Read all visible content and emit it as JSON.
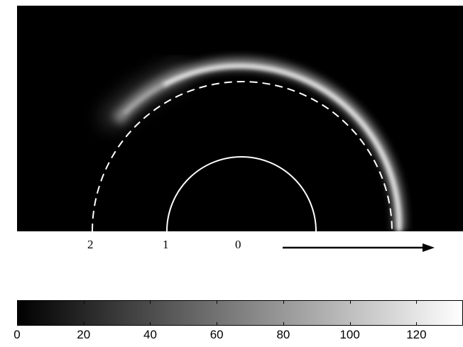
{
  "main_image": {
    "position_labels": [
      {
        "text": "2"
      },
      {
        "text": "1"
      },
      {
        "text": "0"
      }
    ],
    "arrow": "right-arrow"
  },
  "colorbar": {
    "min": 0,
    "max": 134,
    "tick_labels": [
      "0",
      "20",
      "40",
      "60",
      "80",
      "100",
      "120"
    ],
    "tick_values": [
      0,
      20,
      40,
      60,
      80,
      100,
      120
    ],
    "color_low": "#000000",
    "color_high": "#ffffff"
  }
}
